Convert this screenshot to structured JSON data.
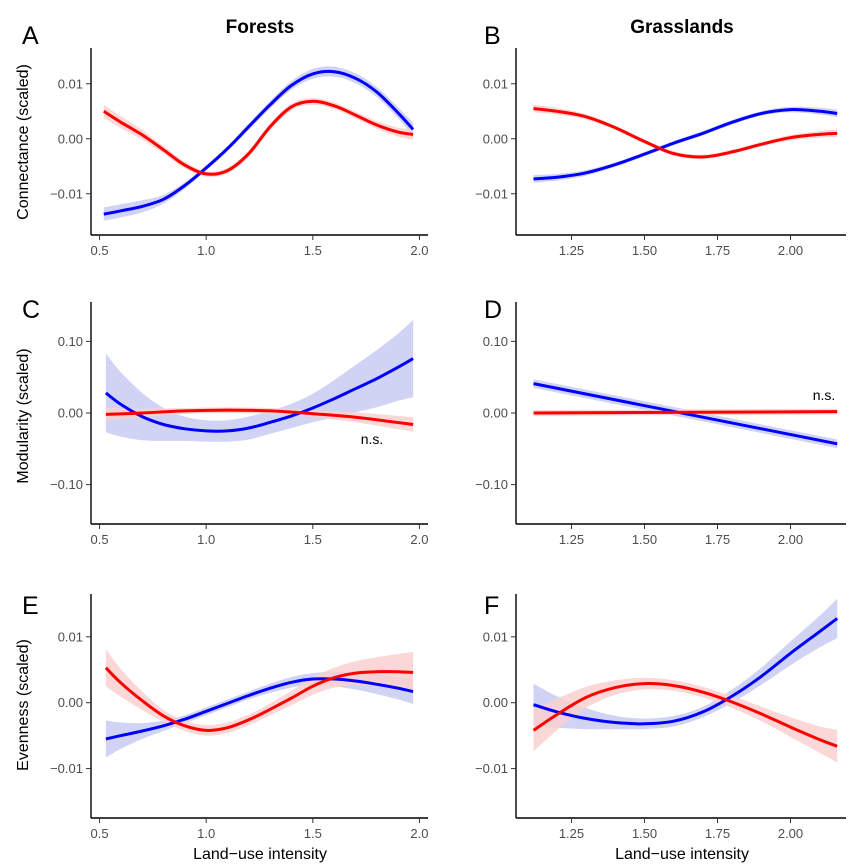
{
  "figure": {
    "column_titles": [
      "Forests",
      "Grasslands"
    ],
    "row_ylabels": [
      "Connectance (scaled)",
      "Modularity (scaled)",
      "Evenness (scaled)"
    ],
    "xlabel": "Land−use intensity"
  },
  "colors": {
    "blue": "#0000ff",
    "red": "#ff0000",
    "blue_band": "#c9cbf3",
    "red_band": "#fbd0d0"
  },
  "chart_data": [
    {
      "panel": "A",
      "type": "line",
      "column": "Forests",
      "ylabel": "Connectance (scaled)",
      "xlim": [
        0.46,
        2.04
      ],
      "ylim": [
        -0.0175,
        0.0165
      ],
      "xticks": [
        0.5,
        1.0,
        1.5,
        2.0
      ],
      "xtick_labels": [
        "0.5",
        "1.0",
        "1.5",
        "2.0"
      ],
      "yticks": [
        -0.01,
        0.0,
        0.01
      ],
      "ytick_labels": [
        "−0.01",
        "0.00",
        "0.01"
      ],
      "annotation": "",
      "series": [
        {
          "color": "blue",
          "x": [
            0.52,
            0.6,
            0.7,
            0.8,
            0.9,
            1.0,
            1.1,
            1.2,
            1.3,
            1.4,
            1.5,
            1.6,
            1.7,
            1.8,
            1.9,
            1.97
          ],
          "y": [
            -0.0137,
            -0.0131,
            -0.0123,
            -0.011,
            -0.0085,
            -0.0053,
            -0.0018,
            0.0022,
            0.0062,
            0.0097,
            0.0118,
            0.0122,
            0.011,
            0.0085,
            0.0047,
            0.0017
          ],
          "band": [
            0.0012,
            0.0012,
            0.0011,
            0.0008,
            0.0006,
            0.0005,
            0.0005,
            0.0006,
            0.0007,
            0.0008,
            0.0009,
            0.0009,
            0.0009,
            0.0009,
            0.001,
            0.0012
          ]
        },
        {
          "color": "red",
          "x": [
            0.52,
            0.6,
            0.7,
            0.8,
            0.9,
            1.0,
            1.1,
            1.2,
            1.3,
            1.4,
            1.5,
            1.6,
            1.7,
            1.8,
            1.9,
            1.97
          ],
          "y": [
            0.005,
            0.003,
            0.0007,
            -0.002,
            -0.0048,
            -0.0064,
            -0.0058,
            -0.0027,
            0.0022,
            0.0058,
            0.0068,
            0.006,
            0.0043,
            0.0025,
            0.0012,
            0.0008
          ],
          "band": [
            0.0012,
            0.0011,
            0.0009,
            0.0007,
            0.0006,
            0.0005,
            0.0005,
            0.0006,
            0.0006,
            0.0006,
            0.0006,
            0.0006,
            0.0006,
            0.0007,
            0.0008,
            0.001
          ]
        }
      ]
    },
    {
      "panel": "B",
      "type": "line",
      "column": "Grasslands",
      "ylabel": "",
      "xlim": [
        1.06,
        2.19
      ],
      "ylim": [
        -0.0175,
        0.0165
      ],
      "xticks": [
        1.25,
        1.5,
        1.75,
        2.0
      ],
      "xtick_labels": [
        "1.25",
        "1.50",
        "1.75",
        "2.00"
      ],
      "yticks": [
        -0.01,
        0.0,
        0.01
      ],
      "ytick_labels": [
        "−0.01",
        "0.00",
        "0.01"
      ],
      "annotation": "",
      "series": [
        {
          "color": "blue",
          "x": [
            1.12,
            1.2,
            1.3,
            1.4,
            1.5,
            1.6,
            1.7,
            1.8,
            1.9,
            2.0,
            2.1,
            2.16
          ],
          "y": [
            -0.0073,
            -0.007,
            -0.0062,
            -0.0047,
            -0.0028,
            -0.0008,
            0.001,
            0.003,
            0.0046,
            0.0053,
            0.005,
            0.0046
          ],
          "band": [
            0.0007,
            0.0006,
            0.0005,
            0.0004,
            0.0004,
            0.0004,
            0.0004,
            0.0004,
            0.0004,
            0.0005,
            0.0006,
            0.0007
          ]
        },
        {
          "color": "red",
          "x": [
            1.12,
            1.2,
            1.3,
            1.4,
            1.5,
            1.6,
            1.7,
            1.8,
            1.9,
            2.0,
            2.1,
            2.16
          ],
          "y": [
            0.0055,
            0.005,
            0.004,
            0.002,
            -0.0005,
            -0.0027,
            -0.0033,
            -0.0024,
            -0.001,
            0.0002,
            0.0008,
            0.001
          ],
          "band": [
            0.0007,
            0.0006,
            0.0005,
            0.0004,
            0.0004,
            0.0004,
            0.0004,
            0.0004,
            0.0004,
            0.0005,
            0.0006,
            0.0007
          ]
        }
      ]
    },
    {
      "panel": "C",
      "type": "line",
      "column": "Forests",
      "ylabel": "Modularity (scaled)",
      "xlim": [
        0.46,
        2.04
      ],
      "ylim": [
        -0.155,
        0.155
      ],
      "xticks": [
        0.5,
        1.0,
        1.5,
        2.0
      ],
      "xtick_labels": [
        "0.5",
        "1.0",
        "1.5",
        "2.0"
      ],
      "yticks": [
        -0.1,
        0.0,
        0.1
      ],
      "ytick_labels": [
        "−0.10",
        "0.00",
        "0.10"
      ],
      "annotation": "n.s.",
      "series": [
        {
          "color": "blue",
          "x": [
            0.53,
            0.6,
            0.7,
            0.8,
            0.9,
            1.0,
            1.1,
            1.2,
            1.3,
            1.4,
            1.5,
            1.6,
            1.7,
            1.8,
            1.9,
            1.97
          ],
          "y": [
            0.028,
            0.012,
            -0.005,
            -0.016,
            -0.022,
            -0.025,
            -0.025,
            -0.021,
            -0.013,
            -0.004,
            0.007,
            0.02,
            0.034,
            0.048,
            0.064,
            0.076
          ],
          "band": [
            0.055,
            0.045,
            0.033,
            0.023,
            0.017,
            0.015,
            0.015,
            0.016,
            0.016,
            0.017,
            0.02,
            0.026,
            0.033,
            0.04,
            0.047,
            0.054
          ]
        },
        {
          "color": "red",
          "x": [
            0.53,
            0.7,
            0.9,
            1.1,
            1.3,
            1.5,
            1.7,
            1.97
          ],
          "y": [
            -0.002,
            0.0,
            0.003,
            0.004,
            0.003,
            -0.001,
            -0.006,
            -0.016
          ],
          "band": [
            0.009,
            0.006,
            0.004,
            0.004,
            0.004,
            0.005,
            0.007,
            0.01
          ]
        }
      ]
    },
    {
      "panel": "D",
      "type": "line",
      "column": "Grasslands",
      "ylabel": "",
      "xlim": [
        1.06,
        2.19
      ],
      "ylim": [
        -0.155,
        0.155
      ],
      "xticks": [
        1.25,
        1.5,
        1.75,
        2.0
      ],
      "xtick_labels": [
        "1.25",
        "1.50",
        "1.75",
        "2.00"
      ],
      "yticks": [
        -0.1,
        0.0,
        0.1
      ],
      "ytick_labels": [
        "−0.10",
        "0.00",
        "0.10"
      ],
      "annotation": "n.s.",
      "series": [
        {
          "color": "blue",
          "x": [
            1.12,
            2.16
          ],
          "y": [
            0.041,
            -0.043
          ],
          "band": [
            0.006,
            0.006
          ]
        },
        {
          "color": "red",
          "x": [
            1.12,
            2.16
          ],
          "y": [
            0.0,
            0.002
          ],
          "band": [
            0.004,
            0.004
          ]
        }
      ]
    },
    {
      "panel": "E",
      "type": "line",
      "column": "Forests",
      "ylabel": "Evenness (scaled)",
      "xlim": [
        0.46,
        2.04
      ],
      "ylim": [
        -0.0175,
        0.0165
      ],
      "xticks": [
        0.5,
        1.0,
        1.5,
        2.0
      ],
      "xtick_labels": [
        "0.5",
        "1.0",
        "1.5",
        "2.0"
      ],
      "yticks": [
        -0.01,
        0.0,
        0.01
      ],
      "ytick_labels": [
        "−0.01",
        "0.00",
        "0.01"
      ],
      "annotation": "",
      "series": [
        {
          "color": "blue",
          "x": [
            0.53,
            0.6,
            0.7,
            0.8,
            0.9,
            1.0,
            1.1,
            1.2,
            1.3,
            1.4,
            1.5,
            1.6,
            1.7,
            1.8,
            1.9,
            1.97
          ],
          "y": [
            -0.0055,
            -0.005,
            -0.0043,
            -0.0035,
            -0.0025,
            -0.0013,
            -0.0001,
            0.0011,
            0.0022,
            0.0031,
            0.0036,
            0.0036,
            0.0033,
            0.0028,
            0.0022,
            0.0017
          ],
          "band": [
            0.0028,
            0.002,
            0.0012,
            0.0008,
            0.0006,
            0.0006,
            0.0006,
            0.0006,
            0.0007,
            0.0008,
            0.0009,
            0.0011,
            0.0013,
            0.0015,
            0.0017,
            0.0019
          ]
        },
        {
          "color": "red",
          "x": [
            0.53,
            0.6,
            0.7,
            0.8,
            0.9,
            1.0,
            1.1,
            1.2,
            1.3,
            1.4,
            1.5,
            1.6,
            1.7,
            1.8,
            1.9,
            1.97
          ],
          "y": [
            0.0053,
            0.003,
            0.0003,
            -0.002,
            -0.0035,
            -0.0042,
            -0.0038,
            -0.0026,
            -0.001,
            0.0007,
            0.0025,
            0.0038,
            0.0045,
            0.0047,
            0.0047,
            0.0046
          ],
          "band": [
            0.0028,
            0.0021,
            0.0014,
            0.0009,
            0.0008,
            0.0008,
            0.0008,
            0.0008,
            0.0009,
            0.0011,
            0.0013,
            0.0015,
            0.0018,
            0.0022,
            0.0027,
            0.0031
          ]
        }
      ]
    },
    {
      "panel": "F",
      "type": "line",
      "column": "Grasslands",
      "ylabel": "",
      "xlim": [
        1.06,
        2.19
      ],
      "ylim": [
        -0.0175,
        0.0165
      ],
      "xticks": [
        1.25,
        1.5,
        1.75,
        2.0
      ],
      "xtick_labels": [
        "1.25",
        "1.50",
        "1.75",
        "2.00"
      ],
      "yticks": [
        -0.01,
        0.0,
        0.01
      ],
      "ytick_labels": [
        "−0.01",
        "0.00",
        "0.01"
      ],
      "annotation": "",
      "series": [
        {
          "color": "blue",
          "x": [
            1.12,
            1.2,
            1.3,
            1.4,
            1.5,
            1.6,
            1.7,
            1.8,
            1.9,
            2.0,
            2.1,
            2.16
          ],
          "y": [
            -0.0003,
            -0.0014,
            -0.0024,
            -0.003,
            -0.0032,
            -0.0028,
            -0.0014,
            0.001,
            0.004,
            0.0075,
            0.0108,
            0.0128
          ],
          "band": [
            0.0032,
            0.0024,
            0.0016,
            0.001,
            0.0008,
            0.0008,
            0.0008,
            0.001,
            0.0013,
            0.0018,
            0.0024,
            0.003
          ]
        },
        {
          "color": "red",
          "x": [
            1.12,
            1.2,
            1.3,
            1.4,
            1.5,
            1.6,
            1.7,
            1.8,
            1.9,
            2.0,
            2.1,
            2.16
          ],
          "y": [
            -0.0042,
            -0.0018,
            0.0008,
            0.0023,
            0.0029,
            0.0026,
            0.0016,
            0.0001,
            -0.0017,
            -0.0037,
            -0.0056,
            -0.0066
          ],
          "band": [
            0.0032,
            0.0024,
            0.0016,
            0.0011,
            0.0009,
            0.0008,
            0.0008,
            0.0009,
            0.0011,
            0.0015,
            0.002,
            0.0025
          ]
        }
      ]
    }
  ]
}
